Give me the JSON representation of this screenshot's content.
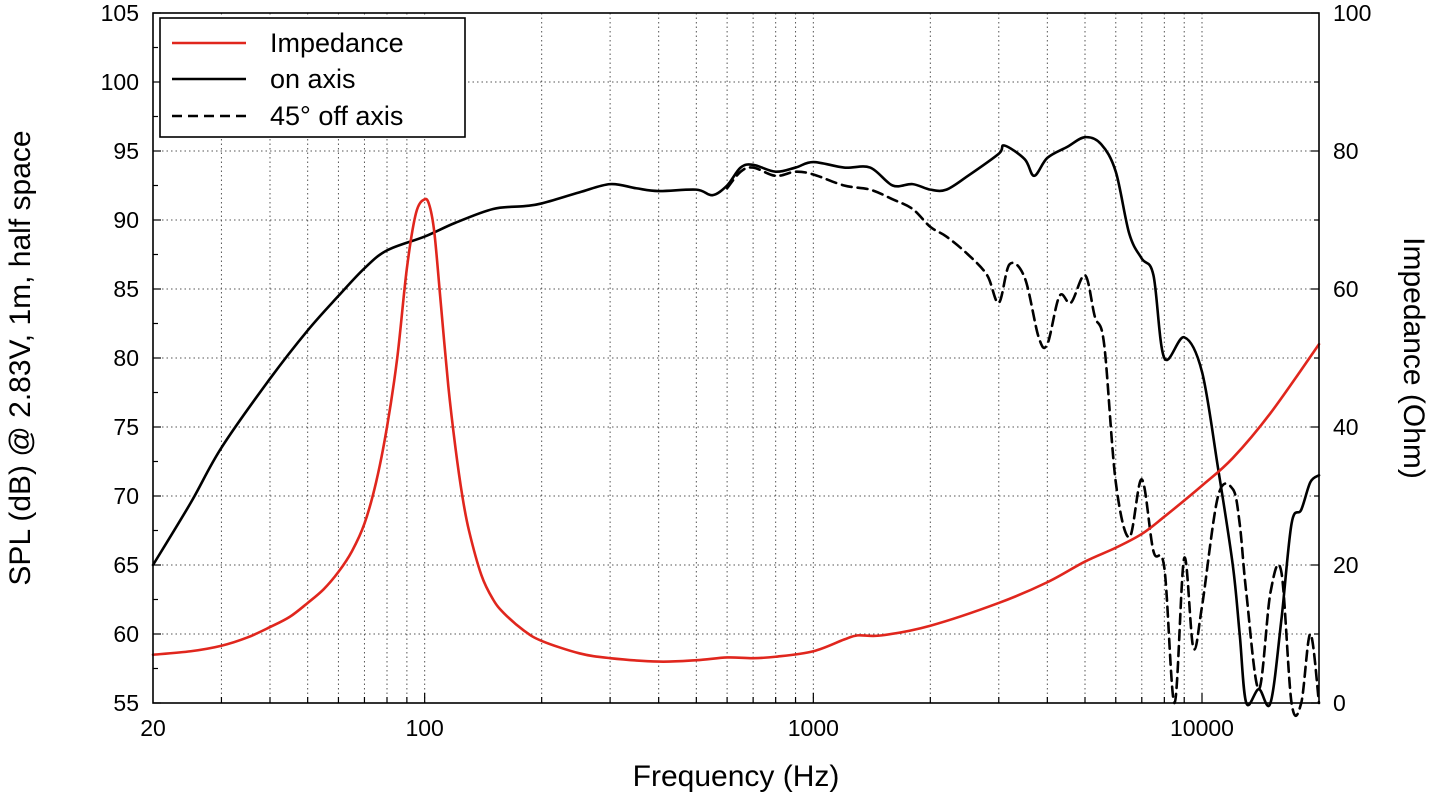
{
  "chart_data": {
    "type": "line",
    "x_scale": "log",
    "xlabel": "Frequency (Hz)",
    "ylabel": "SPL (dB) @ 2.83V, 1m, half space",
    "y2label": "Impedance (Ohm)",
    "xlim": [
      20,
      20000
    ],
    "ylim": [
      55,
      105
    ],
    "y2lim": [
      0,
      100
    ],
    "grid": true,
    "x_ticks": [
      20,
      100,
      1000,
      10000
    ],
    "x_tick_labels": [
      "20",
      "100",
      "1000",
      "10000"
    ],
    "y_ticks": [
      55,
      60,
      65,
      70,
      75,
      80,
      85,
      90,
      95,
      100,
      105
    ],
    "y_tick_labels": [
      "55",
      "60",
      "65",
      "70",
      "75",
      "80",
      "85",
      "90",
      "95",
      "100",
      "105"
    ],
    "y2_ticks": [
      0,
      20,
      40,
      60,
      80,
      100
    ],
    "y2_tick_labels": [
      "0",
      "20",
      "40",
      "60",
      "80",
      "100"
    ],
    "legend": {
      "position": "top-left",
      "entries": [
        {
          "label": "Impedance",
          "color": "#e0261d",
          "style": "solid"
        },
        {
          "label": "on axis",
          "color": "#000000",
          "style": "solid"
        },
        {
          "label": "45° off axis",
          "color": "#000000",
          "style": "dashed"
        }
      ]
    },
    "series": [
      {
        "name": "Impedance",
        "axis": "right",
        "color": "#e0261d",
        "style": "solid",
        "x": [
          20,
          25,
          30,
          35,
          40,
          45,
          50,
          55,
          60,
          65,
          70,
          75,
          80,
          85,
          90,
          95,
          100,
          103,
          106,
          110,
          115,
          120,
          125,
          130,
          140,
          150,
          160,
          180,
          200,
          250,
          300,
          400,
          500,
          600,
          700,
          800,
          1000,
          1200,
          1300,
          1500,
          2000,
          3000,
          4000,
          5000,
          6000,
          7000,
          8000,
          10000,
          12000,
          15000,
          20000
        ],
        "values": [
          7,
          7.5,
          8.3,
          9.5,
          11,
          12.5,
          14.5,
          16.5,
          19,
          22,
          26,
          32,
          40,
          50,
          63,
          71,
          73,
          72,
          68,
          58,
          46,
          37,
          30,
          25,
          18.5,
          15,
          13,
          10.5,
          9,
          7.2,
          6.5,
          6.0,
          6.2,
          6.6,
          6.5,
          6.7,
          7.5,
          9.2,
          9.8,
          9.8,
          11.2,
          14.5,
          17.5,
          20.5,
          22.5,
          24.5,
          27,
          31.5,
          35.5,
          42,
          52
        ]
      },
      {
        "name": "on axis",
        "axis": "left",
        "color": "#000000",
        "style": "solid",
        "x": [
          20,
          25,
          30,
          40,
          50,
          60,
          70,
          80,
          100,
          120,
          150,
          180,
          200,
          250,
          300,
          350,
          400,
          500,
          550,
          600,
          650,
          700,
          800,
          900,
          1000,
          1200,
          1400,
          1600,
          1800,
          2000,
          2200,
          2500,
          3000,
          3100,
          3500,
          3700,
          4000,
          4500,
          5000,
          5500,
          6000,
          6500,
          7000,
          7500,
          8000,
          9000,
          10000,
          11000,
          12000,
          12500,
          13000,
          14000,
          15000,
          16000,
          17000,
          18000,
          19000,
          20000
        ],
        "values": [
          65,
          69.5,
          73.5,
          78.5,
          82,
          84.5,
          86.5,
          87.8,
          88.8,
          89.8,
          90.8,
          91,
          91.2,
          92,
          92.6,
          92.3,
          92.1,
          92.2,
          91.8,
          92.5,
          93.8,
          94,
          93.5,
          93.8,
          94.2,
          93.8,
          93.8,
          92.5,
          92.6,
          92.2,
          92.2,
          93.2,
          94.8,
          95.4,
          94.4,
          93.2,
          94.5,
          95.3,
          96,
          95.5,
          93.5,
          89,
          87.2,
          86,
          80,
          81.5,
          79,
          72,
          65,
          60,
          55,
          56,
          54,
          61,
          68,
          69,
          71,
          71.5
        ]
      },
      {
        "name": "45° off axis",
        "axis": "left",
        "color": "#000000",
        "style": "dashed",
        "x": [
          600,
          650,
          700,
          800,
          900,
          1000,
          1200,
          1400,
          1600,
          1800,
          2000,
          2200,
          2500,
          2800,
          3000,
          3200,
          3500,
          3800,
          4000,
          4300,
          4600,
          5000,
          5300,
          5600,
          6000,
          6500,
          7000,
          7500,
          8000,
          8500,
          9000,
          9500,
          10000,
          11000,
          12000,
          12500,
          13000,
          14000,
          15000,
          16000,
          17000,
          18000,
          19000,
          20000
        ],
        "values": [
          92.3,
          93.5,
          93.8,
          93.2,
          93.5,
          93.3,
          92.5,
          92.2,
          91.5,
          90.8,
          89.5,
          88.8,
          87.5,
          86,
          84,
          86.8,
          85.8,
          81.5,
          81,
          84.5,
          84,
          86,
          83,
          81,
          71,
          67,
          71.2,
          66,
          64.8,
          55,
          65.5,
          59,
          62,
          70,
          70.5,
          68,
          63,
          56,
          63,
          64.5,
          55,
          55,
          60,
          55
        ]
      }
    ]
  }
}
